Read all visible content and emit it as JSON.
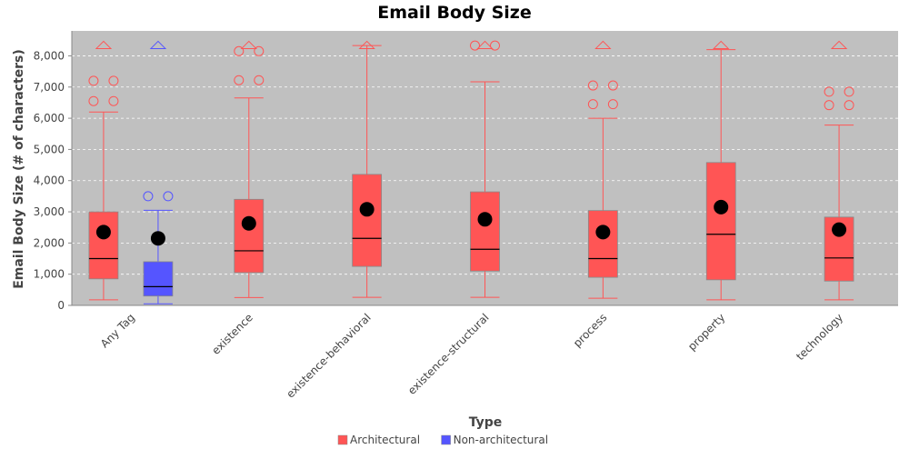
{
  "colors": {
    "architectural": "#ff5555",
    "non_architectural": "#5555ff",
    "plot_background": "#c0c0c0",
    "gridline": "#ffffff",
    "mean_marker": "#000000",
    "median_line": "#000000"
  },
  "chart_data": {
    "type": "box",
    "title": "Email Body Size",
    "xlabel": "Type",
    "ylabel": "Email Body Size (# of characters)",
    "ylim": [
      0,
      8800
    ],
    "yticks": [
      0,
      1000,
      2000,
      3000,
      4000,
      5000,
      6000,
      7000,
      8000
    ],
    "ytick_labels": [
      "0",
      "1,000",
      "2,000",
      "3,000",
      "4,000",
      "5,000",
      "6,000",
      "7,000",
      "8,000"
    ],
    "grid": "horizontal dashed",
    "legend_position": "bottom-center",
    "categories": [
      "Any Tag",
      "existence",
      "existence-behavioral",
      "existence-structural",
      "process",
      "property",
      "technology"
    ],
    "series": [
      {
        "name": "Architectural",
        "color": "#ff5555",
        "boxes": [
          {
            "category": "Any Tag",
            "min": 180,
            "q1": 850,
            "median": 1500,
            "q3": 3000,
            "max": 6200,
            "mean": 2350,
            "outliers": [
              6550,
              7200
            ],
            "far_outliers": [
              8350
            ]
          },
          {
            "category": "existence",
            "min": 250,
            "q1": 1050,
            "median": 1750,
            "q3": 3400,
            "max": 6650,
            "mean": 2630,
            "outliers": [
              7220,
              8150
            ],
            "far_outliers": [
              8350
            ]
          },
          {
            "category": "existence-behavioral",
            "min": 260,
            "q1": 1250,
            "median": 2150,
            "q3": 4200,
            "max": 8330,
            "mean": 3080,
            "outliers": [],
            "far_outliers": [
              8350
            ]
          },
          {
            "category": "existence-structural",
            "min": 260,
            "q1": 1100,
            "median": 1800,
            "q3": 3640,
            "max": 7170,
            "mean": 2760,
            "outliers": [
              8330
            ],
            "far_outliers": [
              8350
            ]
          },
          {
            "category": "process",
            "min": 230,
            "q1": 900,
            "median": 1500,
            "q3": 3040,
            "max": 6000,
            "mean": 2350,
            "outliers": [
              6450,
              7050
            ],
            "far_outliers": [
              8350
            ]
          },
          {
            "category": "property",
            "min": 180,
            "q1": 820,
            "median": 2280,
            "q3": 4580,
            "max": 8200,
            "mean": 3150,
            "outliers": [],
            "far_outliers": [
              8350
            ]
          },
          {
            "category": "technology",
            "min": 180,
            "q1": 780,
            "median": 1520,
            "q3": 2830,
            "max": 5780,
            "mean": 2430,
            "outliers": [
              6420,
              6850
            ],
            "far_outliers": [
              8350
            ]
          }
        ]
      },
      {
        "name": "Non-architectural",
        "color": "#5555ff",
        "boxes": [
          {
            "category": "Any Tag",
            "min": 50,
            "q1": 300,
            "median": 600,
            "q3": 1400,
            "max": 3050,
            "mean": 2150,
            "outliers": [
              3500
            ],
            "far_outliers": [
              8350
            ]
          }
        ]
      }
    ]
  }
}
